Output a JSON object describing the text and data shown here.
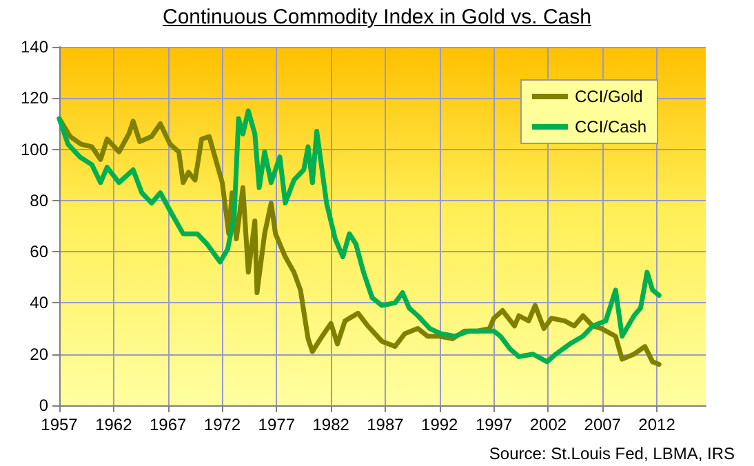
{
  "chart_data": {
    "type": "line",
    "title": "Continuous Commodity Index in Gold vs. Cash",
    "annotations": [
      "Source: St.Louis Fed, LBMA, IRS"
    ],
    "xlim": [
      1957,
      2016.5
    ],
    "xticks": [
      1957,
      1962,
      1967,
      1972,
      1977,
      1982,
      1987,
      1992,
      1997,
      2002,
      2007,
      2012
    ],
    "ylim": [
      0,
      140
    ],
    "yticks": [
      0,
      20,
      40,
      60,
      80,
      100,
      120,
      140
    ],
    "grid": true,
    "legend": "top right",
    "marker": "none",
    "line_style": "solid",
    "series": [
      {
        "name": "CCI/Gold",
        "color": "#808000",
        "x": [
          1957.0,
          1958.0,
          1959.0,
          1960.0,
          1960.8,
          1961.4,
          1962.5,
          1963.4,
          1963.8,
          1964.4,
          1965.5,
          1966.3,
          1967.2,
          1968.0,
          1968.4,
          1968.9,
          1969.5,
          1970.1,
          1970.8,
          1971.4,
          1972.0,
          1972.6,
          1972.9,
          1973.3,
          1973.9,
          1974.4,
          1975.0,
          1975.2,
          1975.9,
          1976.5,
          1976.9,
          1977.8,
          1978.6,
          1979.2,
          1979.9,
          1980.3,
          1981.2,
          1982.0,
          1982.6,
          1983.3,
          1984.5,
          1985.4,
          1986.7,
          1987.9,
          1988.8,
          1990.0,
          1990.9,
          1992.0,
          1993.2,
          1994.3,
          1995.5,
          1996.6,
          1997.0,
          1997.8,
          1998.9,
          1999.3,
          2000.2,
          2000.8,
          2001.6,
          2002.3,
          2003.5,
          2004.4,
          2005.2,
          2006.1,
          2006.9,
          2008.2,
          2008.8,
          2009.9,
          2010.9,
          2011.6,
          2012.2
        ],
        "values": [
          112,
          105,
          102,
          101,
          96,
          104,
          99,
          106,
          111,
          103,
          105,
          110,
          102,
          99,
          87,
          91,
          88,
          104,
          105,
          96,
          87,
          67,
          83,
          65,
          85,
          52,
          72,
          44,
          67,
          79,
          67,
          58,
          52,
          45,
          26,
          21,
          27,
          32,
          24,
          33,
          36,
          31,
          25,
          23,
          28,
          30,
          27,
          27,
          26,
          29,
          29,
          30,
          34,
          37,
          31,
          35,
          33,
          39,
          30,
          34,
          33,
          31,
          35,
          31,
          30,
          27,
          18,
          20,
          23,
          17,
          16
        ]
      },
      {
        "name": "CCI/Cash",
        "color": "#00b050",
        "x": [
          1957.0,
          1957.8,
          1958.9,
          1960.0,
          1960.8,
          1961.4,
          1962.5,
          1963.8,
          1964.6,
          1965.5,
          1966.3,
          1967.2,
          1968.4,
          1969.7,
          1970.6,
          1971.8,
          1972.5,
          1973.1,
          1973.5,
          1973.9,
          1974.4,
          1975.0,
          1975.4,
          1975.9,
          1976.5,
          1977.3,
          1977.8,
          1978.6,
          1979.5,
          1979.9,
          1980.3,
          1980.7,
          1981.6,
          1982.4,
          1983.1,
          1983.7,
          1984.3,
          1985.0,
          1985.8,
          1986.7,
          1987.9,
          1988.6,
          1989.2,
          1990.0,
          1991.1,
          1992.1,
          1993.4,
          1994.7,
          1995.9,
          1997.0,
          1997.6,
          1998.5,
          1999.3,
          2000.6,
          2001.9,
          2002.7,
          2004.0,
          2005.2,
          2006.1,
          2007.3,
          2008.2,
          2008.8,
          2009.9,
          2010.5,
          2011.1,
          2011.6,
          2012.2
        ],
        "values": [
          112,
          102,
          97,
          94,
          87,
          93,
          87,
          92,
          83,
          79,
          83,
          76,
          67,
          67,
          63,
          56,
          61,
          74,
          112,
          106,
          115,
          106,
          85,
          99,
          87,
          97,
          79,
          88,
          92,
          101,
          87,
          107,
          79,
          65,
          58,
          67,
          63,
          52,
          42,
          39,
          40,
          44,
          38,
          35,
          30,
          28,
          27,
          29,
          29,
          29,
          27,
          22,
          19,
          20,
          17,
          20,
          24,
          27,
          31,
          33,
          45,
          27,
          35,
          38,
          52,
          45,
          43
        ]
      }
    ]
  }
}
